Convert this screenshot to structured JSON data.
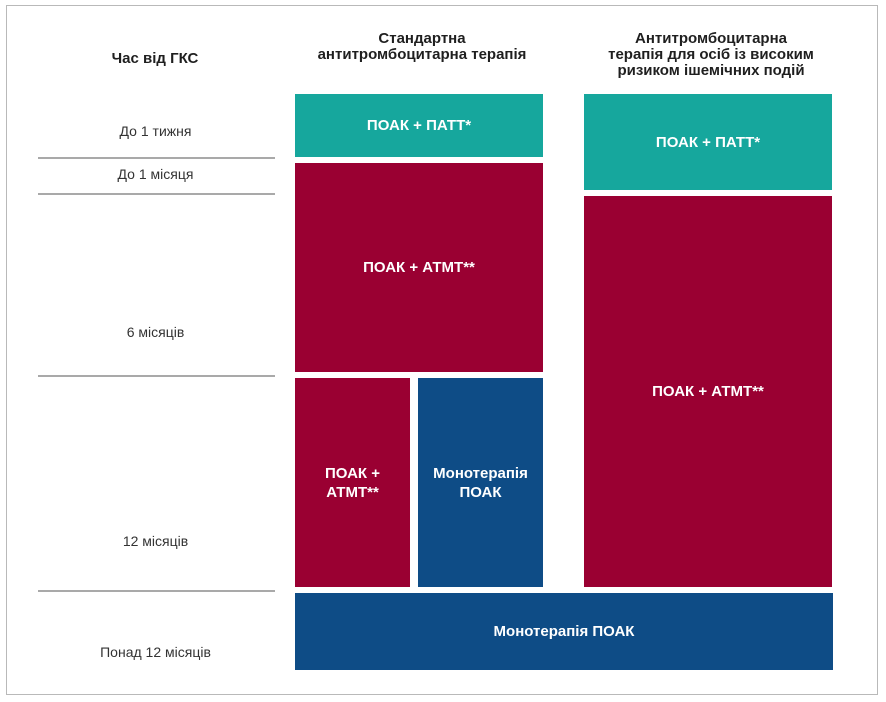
{
  "colors": {
    "teal": "#16a79d",
    "red": "#9a0032",
    "navy": "#0e4c86"
  },
  "header": {
    "time_column": "Час від ГКС",
    "standard": "Стандартна\nантитромбоцитарна терапія",
    "high_risk": "Антитромбоцитарна\nтерапія для осіб із високим\nризиком ішемічних подій"
  },
  "time_labels": [
    "До 1 тижня",
    "До 1 місяця",
    "6 місяців",
    "12 місяців",
    "Понад 12 місяців"
  ],
  "standard": {
    "week": "ПОАК + ПАТТ*",
    "six_months": "ПОАК + АТМТ**",
    "twelve_left": "ПОАК +\nАТМТ**",
    "twelve_right": "Монотерапія\nПОАК"
  },
  "high_risk": {
    "month": "ПОАК + ПАТТ*",
    "twelve": "ПОАК + АТМТ**"
  },
  "after_12": "Монотерапія ПОАК"
}
